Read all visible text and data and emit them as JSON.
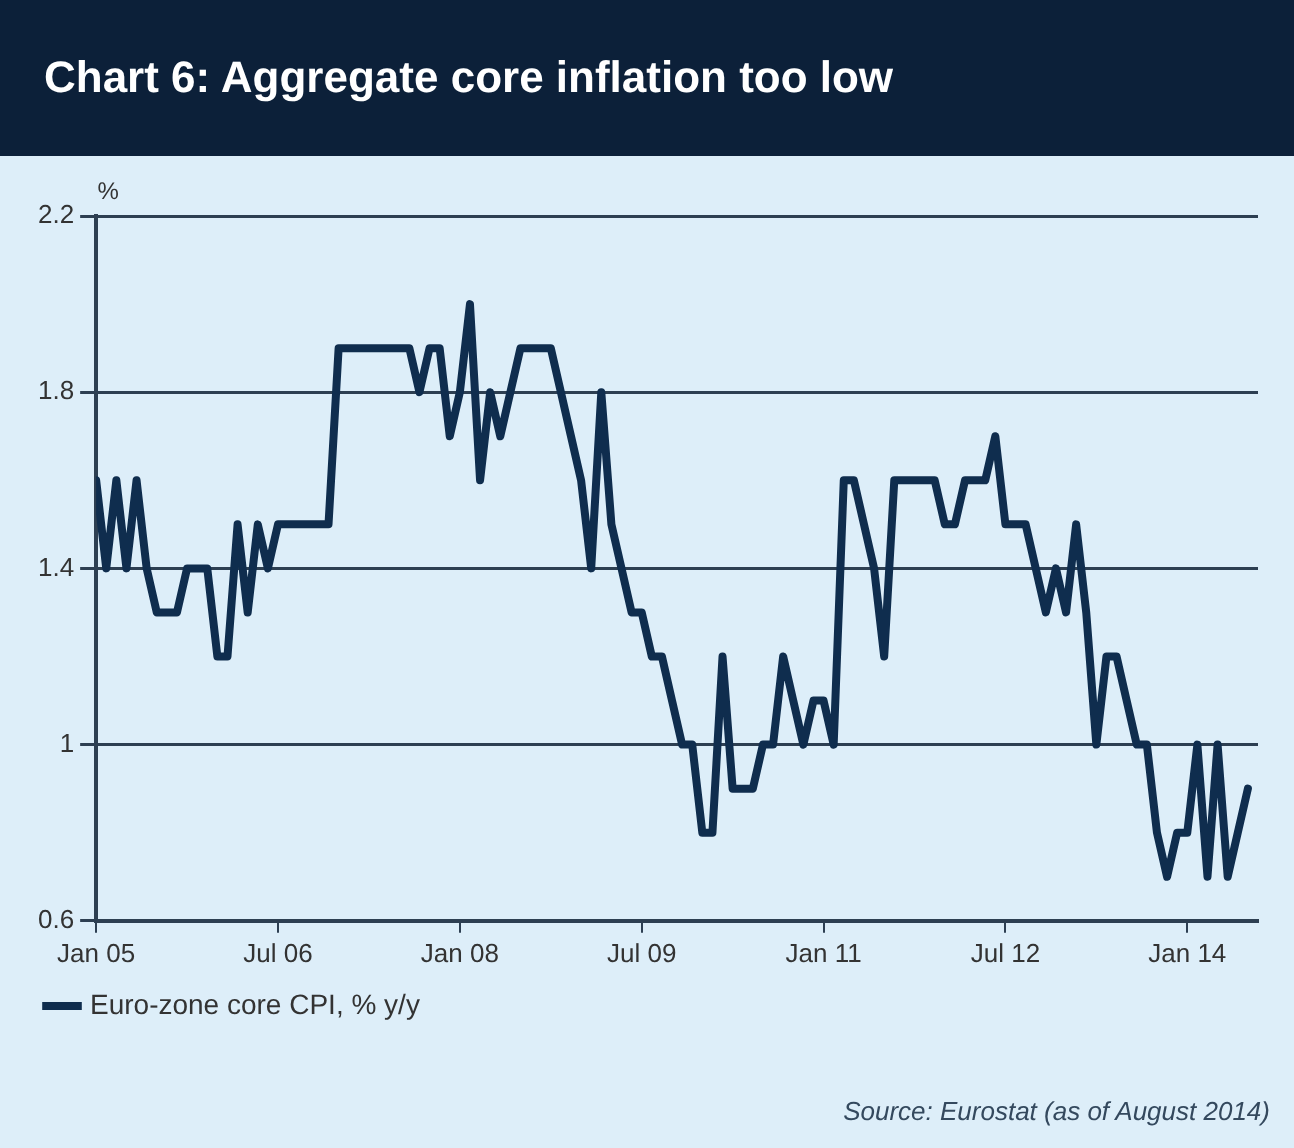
{
  "chart_data": {
    "type": "line",
    "title": "Chart 6: Aggregate core inflation too low",
    "ylabel": "%",
    "x": [
      "2005-01",
      "2005-02",
      "2005-03",
      "2005-04",
      "2005-05",
      "2005-06",
      "2005-07",
      "2005-08",
      "2005-09",
      "2005-10",
      "2005-11",
      "2005-12",
      "2006-01",
      "2006-02",
      "2006-03",
      "2006-04",
      "2006-05",
      "2006-06",
      "2006-07",
      "2006-08",
      "2006-09",
      "2006-10",
      "2006-11",
      "2006-12",
      "2007-01",
      "2007-02",
      "2007-03",
      "2007-04",
      "2007-05",
      "2007-06",
      "2007-07",
      "2007-08",
      "2007-09",
      "2007-10",
      "2007-11",
      "2007-12",
      "2008-01",
      "2008-02",
      "2008-03",
      "2008-04",
      "2008-05",
      "2008-06",
      "2008-07",
      "2008-08",
      "2008-09",
      "2008-10",
      "2008-11",
      "2008-12",
      "2009-01",
      "2009-02",
      "2009-03",
      "2009-04",
      "2009-05",
      "2009-06",
      "2009-07",
      "2009-08",
      "2009-09",
      "2009-10",
      "2009-11",
      "2009-12",
      "2010-01",
      "2010-02",
      "2010-03",
      "2010-04",
      "2010-05",
      "2010-06",
      "2010-07",
      "2010-08",
      "2010-09",
      "2010-10",
      "2010-11",
      "2010-12",
      "2011-01",
      "2011-02",
      "2011-03",
      "2011-04",
      "2011-05",
      "2011-06",
      "2011-07",
      "2011-08",
      "2011-09",
      "2011-10",
      "2011-11",
      "2011-12",
      "2012-01",
      "2012-02",
      "2012-03",
      "2012-04",
      "2012-05",
      "2012-06",
      "2012-07",
      "2012-08",
      "2012-09",
      "2012-10",
      "2012-11",
      "2012-12",
      "2013-01",
      "2013-02",
      "2013-03",
      "2013-04",
      "2013-05",
      "2013-06",
      "2013-07",
      "2013-08",
      "2013-09",
      "2013-10",
      "2013-11",
      "2013-12",
      "2014-01",
      "2014-02",
      "2014-03",
      "2014-04",
      "2014-05",
      "2014-06",
      "2014-07"
    ],
    "series": [
      {
        "name": "Euro-zone core CPI, % y/y",
        "color": "#0f2d4e",
        "values": [
          1.6,
          1.4,
          1.6,
          1.4,
          1.6,
          1.4,
          1.3,
          1.3,
          1.3,
          1.4,
          1.4,
          1.4,
          1.2,
          1.2,
          1.5,
          1.3,
          1.5,
          1.4,
          1.5,
          1.5,
          1.5,
          1.5,
          1.5,
          1.5,
          1.9,
          1.9,
          1.9,
          1.9,
          1.9,
          1.9,
          1.9,
          1.9,
          1.8,
          1.9,
          1.9,
          1.7,
          1.8,
          2.0,
          1.6,
          1.8,
          1.7,
          1.8,
          1.9,
          1.9,
          1.9,
          1.9,
          1.8,
          1.7,
          1.6,
          1.4,
          1.8,
          1.5,
          1.4,
          1.3,
          1.3,
          1.2,
          1.2,
          1.1,
          1.0,
          1.0,
          0.8,
          0.8,
          1.2,
          0.9,
          0.9,
          0.9,
          1.0,
          1.0,
          1.2,
          1.1,
          1.0,
          1.1,
          1.1,
          1.0,
          1.6,
          1.6,
          1.5,
          1.4,
          1.2,
          1.6,
          1.6,
          1.6,
          1.6,
          1.6,
          1.5,
          1.5,
          1.6,
          1.6,
          1.6,
          1.7,
          1.5,
          1.5,
          1.5,
          1.4,
          1.3,
          1.4,
          1.3,
          1.5,
          1.3,
          1.0,
          1.2,
          1.2,
          1.1,
          1.0,
          1.0,
          0.8,
          0.7,
          0.8,
          0.8,
          1.0,
          0.7,
          1.0,
          0.7,
          0.8,
          0.9
        ]
      }
    ],
    "xlim": [
      "2005-01",
      "2014-08"
    ],
    "xticks": [
      {
        "value": "2005-01",
        "label": "Jan 05"
      },
      {
        "value": "2006-07",
        "label": "Jul 06"
      },
      {
        "value": "2008-01",
        "label": "Jan 08"
      },
      {
        "value": "2009-07",
        "label": "Jul 09"
      },
      {
        "value": "2011-01",
        "label": "Jan 11"
      },
      {
        "value": "2012-07",
        "label": "Jul 12"
      },
      {
        "value": "2014-01",
        "label": "Jan 14"
      }
    ],
    "ylim": [
      0.6,
      2.2
    ],
    "yticks": [
      0.6,
      1,
      1.4,
      1.8,
      2.2
    ],
    "grid": "y",
    "legend": "bottom",
    "marker": "none",
    "line_style": "solid",
    "annotations": [
      "Source: Eurostat (as of August 2014)"
    ]
  }
}
